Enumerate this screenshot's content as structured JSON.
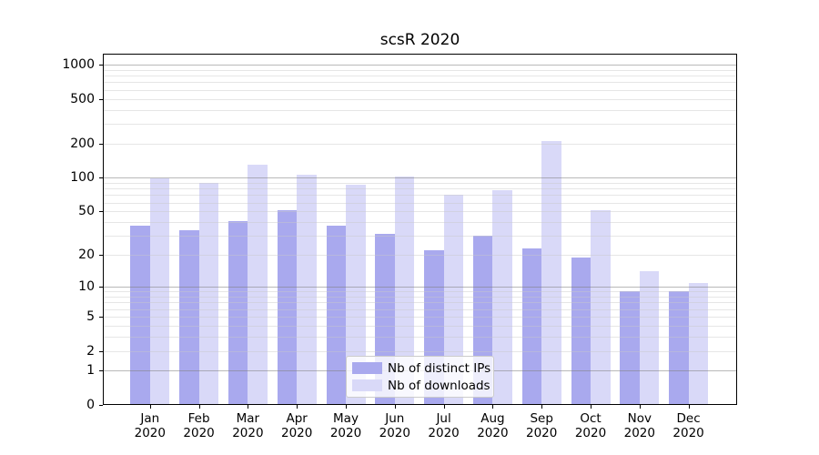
{
  "title": "scsR 2020",
  "chart_data": {
    "type": "bar",
    "title": "scsR 2020",
    "categories": [
      "Jan 2020",
      "Feb 2020",
      "Mar 2020",
      "Apr 2020",
      "May 2020",
      "Jun 2020",
      "Jul 2020",
      "Aug 2020",
      "Sep 2020",
      "Oct 2020",
      "Nov 2020",
      "Dec 2020"
    ],
    "series": [
      {
        "name": "Nb of distinct IPs",
        "color": "#a9a9ee",
        "values": [
          37,
          34,
          41,
          51,
          37,
          31,
          22,
          30,
          23,
          19,
          9,
          9
        ]
      },
      {
        "name": "Nb of downloads",
        "color": "#d9d9f8",
        "values": [
          99,
          90,
          130,
          106,
          86,
          102,
          70,
          78,
          210,
          51,
          14,
          11
        ]
      }
    ],
    "xlabel": "",
    "ylabel": "",
    "y_scale": "log1p",
    "ylim": [
      0,
      1250
    ],
    "y_tick_values": [
      0,
      1,
      2,
      5,
      10,
      20,
      50,
      100,
      200,
      500,
      1000
    ],
    "y_major_gridlines": [
      1,
      10,
      100,
      1000
    ],
    "y_minor_gridlines": [
      2,
      3,
      4,
      5,
      6,
      7,
      8,
      9,
      20,
      30,
      40,
      50,
      60,
      70,
      80,
      90,
      200,
      300,
      400,
      500,
      600,
      700,
      800,
      900
    ],
    "grid": true,
    "legend_position": "lower center"
  },
  "colors": {
    "bar_distinct_ips": "#a9a9ee",
    "bar_downloads": "#d9d9f8",
    "grid_major": "#b4b4b4",
    "grid_minor": "#e6e6e6",
    "spine": "#000000",
    "legend_border": "#cccccc",
    "background": "#ffffff"
  }
}
